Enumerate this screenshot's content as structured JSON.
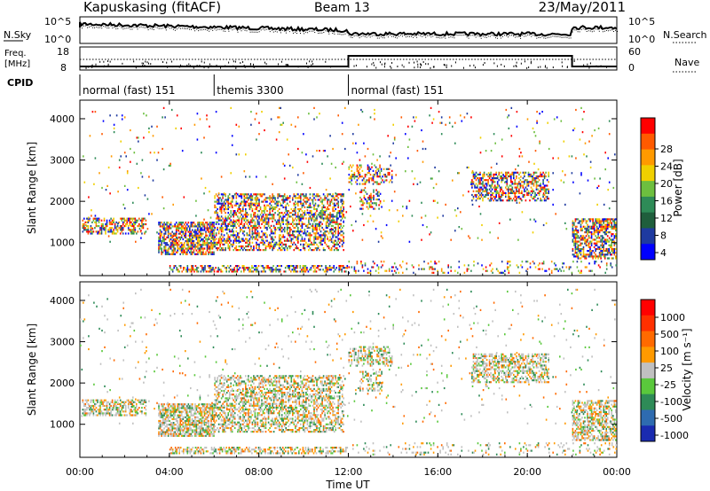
{
  "header": {
    "station": "Kapuskasing (fitACF)",
    "beam": "Beam 13",
    "date": "23/May/2011"
  },
  "noise_panel": {
    "left_label": "N.Sky",
    "left_ticks": [
      "10^5",
      "10^0"
    ],
    "right_ticks": [
      "10^5",
      "10^0"
    ],
    "right_label": "N.Search"
  },
  "freq_panel": {
    "left_label_1": "Freq.",
    "left_label_2": "[MHz]",
    "left_ticks": [
      "18",
      "8"
    ],
    "right_ticks": [
      "60",
      "0"
    ],
    "right_label": "Nave"
  },
  "cpid": {
    "label": "CPID",
    "segments": [
      {
        "text": "normal (fast) 151",
        "start_hour": 0,
        "end_hour": 6
      },
      {
        "text": "themis 3300",
        "start_hour": 6,
        "end_hour": 12
      },
      {
        "text": "normal (fast) 151",
        "start_hour": 12,
        "end_hour": 24
      }
    ]
  },
  "chart_data": [
    {
      "type": "heatmap",
      "name": "power",
      "ylabel": "Slant Range [km]",
      "yticks": [
        "4000",
        "3000",
        "2000",
        "1000"
      ],
      "colorbar_label": "Power [dB]",
      "colorbar_ticks": [
        "28",
        "24",
        "20",
        "16",
        "12",
        "8",
        "4"
      ],
      "colors": [
        "#0000ff",
        "#1e3aa0",
        "#1f5e3c",
        "#2e8b57",
        "#6dbf3f",
        "#f0d000",
        "#ff9a00",
        "#ff5a00",
        "#ff0000"
      ]
    },
    {
      "type": "heatmap",
      "name": "velocity",
      "ylabel": "Slant Range [km]",
      "yticks": [
        "4000",
        "3000",
        "2000",
        "1000"
      ],
      "colorbar_label": "Velocity [m s⁻¹]",
      "colorbar_ticks": [
        "1000",
        "500",
        "100",
        "25",
        "-25",
        "-100",
        "-500",
        "-1000"
      ],
      "colors": [
        "#1a2bb0",
        "#2e6bb0",
        "#2e8b57",
        "#5ac83c",
        "#c0c0c0",
        "#ff9a00",
        "#ff6a00",
        "#ff3000",
        "#ff0000"
      ]
    }
  ],
  "time_axis": {
    "label": "Time UT",
    "ticks": [
      "00:00",
      "04:00",
      "08:00",
      "12:00",
      "16:00",
      "20:00",
      "00:00"
    ]
  }
}
